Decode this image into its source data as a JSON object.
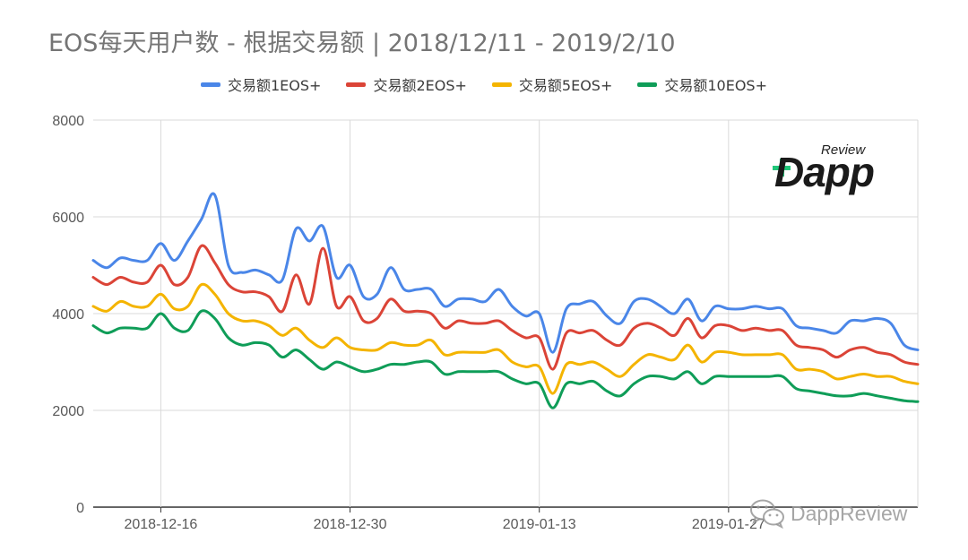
{
  "title": "EOS每天用户数 - 根据交易额 | 2018/12/11 - 2019/2/10",
  "logo": {
    "sup": "Review",
    "main": "Dapp"
  },
  "watermark": {
    "text": "DappReview",
    "icon": "wechat-icon"
  },
  "chart_data": {
    "type": "line",
    "title": "EOS每天用户数 - 根据交易额 | 2018/12/11 - 2019/2/10",
    "xlabel": "",
    "ylabel": "",
    "ylim": [
      0,
      8000
    ],
    "yticks": [
      0,
      2000,
      4000,
      6000,
      8000
    ],
    "grid": true,
    "legend_position": "top",
    "x": [
      "2018-12-11",
      "2018-12-12",
      "2018-12-13",
      "2018-12-14",
      "2018-12-15",
      "2018-12-16",
      "2018-12-17",
      "2018-12-18",
      "2018-12-19",
      "2018-12-20",
      "2018-12-21",
      "2018-12-22",
      "2018-12-23",
      "2018-12-24",
      "2018-12-25",
      "2018-12-26",
      "2018-12-27",
      "2018-12-28",
      "2018-12-29",
      "2018-12-30",
      "2018-12-31",
      "2019-01-01",
      "2019-01-02",
      "2019-01-03",
      "2019-01-04",
      "2019-01-05",
      "2019-01-06",
      "2019-01-07",
      "2019-01-08",
      "2019-01-09",
      "2019-01-10",
      "2019-01-11",
      "2019-01-12",
      "2019-01-13",
      "2019-01-14",
      "2019-01-15",
      "2019-01-16",
      "2019-01-17",
      "2019-01-18",
      "2019-01-19",
      "2019-01-20",
      "2019-01-21",
      "2019-01-22",
      "2019-01-23",
      "2019-01-24",
      "2019-01-25",
      "2019-01-26",
      "2019-01-27",
      "2019-01-28",
      "2019-01-29",
      "2019-01-30",
      "2019-01-31",
      "2019-02-01",
      "2019-02-02",
      "2019-02-03",
      "2019-02-04",
      "2019-02-05",
      "2019-02-06",
      "2019-02-07",
      "2019-02-08",
      "2019-02-09",
      "2019-02-10"
    ],
    "xticks": [
      "2018-12-16",
      "2018-12-30",
      "2019-01-13",
      "2019-01-27"
    ],
    "series": [
      {
        "name": "交易额1EOS+",
        "color": "#4a86e8",
        "values": [
          5100,
          4950,
          5150,
          5100,
          5100,
          5450,
          5100,
          5500,
          5950,
          6450,
          5000,
          4850,
          4900,
          4800,
          4700,
          5750,
          5500,
          5800,
          4750,
          5000,
          4350,
          4400,
          4950,
          4500,
          4500,
          4500,
          4150,
          4300,
          4300,
          4250,
          4500,
          4150,
          3950,
          4000,
          3200,
          4100,
          4200,
          4250,
          3950,
          3800,
          4250,
          4300,
          4150,
          4000,
          4300,
          3850,
          4150,
          4100,
          4100,
          4150,
          4100,
          4100,
          3750,
          3700,
          3650,
          3600,
          3850,
          3850,
          3900,
          3800,
          3350,
          3250
        ]
      },
      {
        "name": "交易额2EOS+",
        "color": "#db4437",
        "values": [
          4750,
          4600,
          4750,
          4650,
          4650,
          5000,
          4600,
          4750,
          5400,
          5050,
          4600,
          4450,
          4450,
          4350,
          4050,
          4800,
          4200,
          5350,
          4150,
          4350,
          3850,
          3900,
          4300,
          4050,
          4050,
          4000,
          3700,
          3850,
          3800,
          3800,
          3850,
          3650,
          3500,
          3500,
          2850,
          3600,
          3600,
          3650,
          3450,
          3350,
          3700,
          3800,
          3700,
          3550,
          3900,
          3500,
          3750,
          3750,
          3650,
          3700,
          3650,
          3650,
          3350,
          3300,
          3250,
          3100,
          3250,
          3300,
          3200,
          3150,
          3000,
          2950
        ]
      },
      {
        "name": "交易额5EOS+",
        "color": "#f4b400",
        "values": [
          4150,
          4050,
          4250,
          4150,
          4150,
          4400,
          4100,
          4150,
          4600,
          4400,
          4000,
          3850,
          3850,
          3750,
          3550,
          3700,
          3450,
          3300,
          3500,
          3300,
          3250,
          3250,
          3400,
          3350,
          3350,
          3450,
          3150,
          3200,
          3200,
          3200,
          3250,
          3000,
          2900,
          2900,
          2350,
          2950,
          2950,
          3000,
          2850,
          2700,
          2950,
          3150,
          3100,
          3050,
          3350,
          3000,
          3200,
          3200,
          3150,
          3150,
          3150,
          3150,
          2850,
          2850,
          2800,
          2650,
          2700,
          2750,
          2700,
          2700,
          2600,
          2550
        ]
      },
      {
        "name": "交易额10EOS+",
        "color": "#0f9d58",
        "values": [
          3750,
          3600,
          3700,
          3700,
          3700,
          4000,
          3700,
          3650,
          4050,
          3900,
          3500,
          3350,
          3400,
          3350,
          3100,
          3250,
          3050,
          2850,
          3000,
          2900,
          2800,
          2850,
          2950,
          2950,
          3000,
          3000,
          2750,
          2800,
          2800,
          2800,
          2800,
          2650,
          2550,
          2550,
          2050,
          2550,
          2550,
          2600,
          2400,
          2300,
          2550,
          2700,
          2700,
          2650,
          2800,
          2550,
          2700,
          2700,
          2700,
          2700,
          2700,
          2700,
          2450,
          2400,
          2350,
          2300,
          2300,
          2350,
          2300,
          2250,
          2200,
          2180
        ]
      }
    ]
  }
}
